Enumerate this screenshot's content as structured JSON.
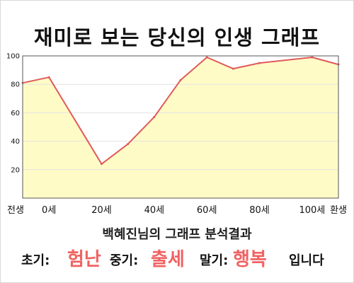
{
  "title": "재미로 보는 당신의 인생 그래프",
  "subtitle": "백혜진님의 그래프 분석결과",
  "summary": {
    "early_label": "초기:",
    "early_value": "험난",
    "middle_label": "중기:",
    "middle_value": "출세",
    "late_label": "말기:",
    "late_value": "행복",
    "ending": "입니다"
  },
  "colors": {
    "fill": "#fffbc6",
    "line": "#e05a5a",
    "accent": "#f06262",
    "grid": "#e3e3e3"
  },
  "chart_data": {
    "type": "area",
    "x": [
      -10,
      0,
      20,
      30,
      40,
      50,
      60,
      70,
      80,
      100,
      110
    ],
    "values": [
      81,
      85,
      24,
      38,
      57,
      83,
      99,
      91,
      95,
      99,
      94
    ],
    "xtick_labels": [
      "전생",
      "0세",
      "20세",
      "40세",
      "60세",
      "80세",
      "100세",
      "환생"
    ],
    "xtick_positions": [
      -10,
      0,
      20,
      40,
      60,
      80,
      100,
      110
    ],
    "yticks": [
      20,
      40,
      60,
      80,
      100
    ],
    "ylim": [
      0,
      100
    ],
    "xlim": [
      -10,
      110
    ],
    "grid": true
  }
}
